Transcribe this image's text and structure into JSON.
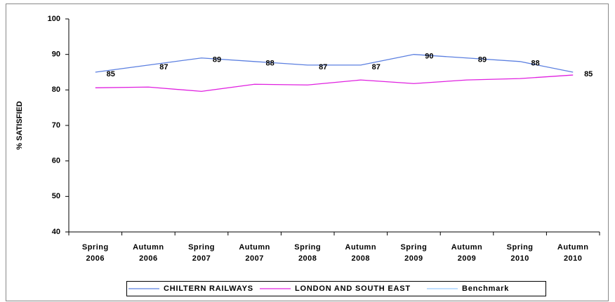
{
  "chart_data": {
    "type": "line",
    "y_label": "% SATISFIED",
    "categories": [
      "Spring 2006",
      "Autumn 2006",
      "Spring 2007",
      "Autumn 2007",
      "Spring 2008",
      "Autumn 2008",
      "Spring 2009",
      "Autumn 2009",
      "Spring 2010",
      "Autumn 2010"
    ],
    "series": [
      {
        "name": "CHILTERN RAILWAYS",
        "color": "#5b7fe0",
        "values": [
          85,
          87,
          89,
          88,
          87,
          87,
          90,
          89,
          88,
          85
        ],
        "data_labels": true
      },
      {
        "name": "LONDON AND SOUTH EAST",
        "color": "#e020e0",
        "values": [
          80.6,
          80.8,
          79.6,
          81.6,
          81.4,
          82.8,
          81.8,
          82.8,
          83.2,
          84.2
        ],
        "data_labels": false
      },
      {
        "name": "Benchmark",
        "color": "#99ccff",
        "values": [
          null,
          null,
          null,
          null,
          null,
          null,
          null,
          null,
          null,
          null
        ],
        "data_labels": false
      }
    ],
    "ylim": [
      40,
      100
    ],
    "yticks": [
      40,
      50,
      60,
      70,
      80,
      90,
      100
    ],
    "grid": false
  }
}
